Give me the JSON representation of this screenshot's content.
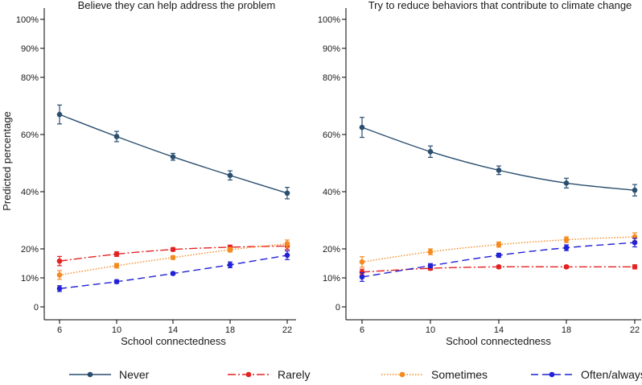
{
  "chart_data": {
    "type": "line",
    "ylabel": "Predicted percentage",
    "xlabel": "School connectedness",
    "x": [
      6,
      10,
      14,
      18,
      22
    ],
    "xlim": [
      6,
      22
    ],
    "yticks": [
      0,
      10,
      20,
      40,
      60,
      80,
      90,
      100
    ],
    "ytick_labels": [
      "0",
      "10%",
      "20%",
      "40%",
      "60%",
      "80%",
      "90%",
      "100%"
    ],
    "xtick_labels": [
      "6",
      "10",
      "14",
      "18",
      "22"
    ],
    "series_styles": [
      {
        "name": "Never",
        "color": "#2a4e6e",
        "dash": ""
      },
      {
        "name": "Rarely",
        "color": "#e42222",
        "dash": "10 3 2 3"
      },
      {
        "name": "Sometimes",
        "color": "#f58a1f",
        "dash": "1.5 2"
      },
      {
        "name": "Often/always",
        "color": "#2222d6",
        "dash": "9 5"
      }
    ],
    "panels": [
      {
        "title": "Believe they can help address the problem",
        "series": [
          {
            "name": "Never",
            "values": [
              67.0,
              59.3,
              52.2,
              45.7,
              39.5
            ],
            "err": [
              3.3,
              1.8,
              1.2,
              1.6,
              2.0
            ]
          },
          {
            "name": "Rarely",
            "values": [
              15.8,
              18.2,
              19.8,
              20.6,
              21.0
            ],
            "err": [
              1.6,
              0.8,
              0.6,
              0.7,
              1.2
            ]
          },
          {
            "name": "Sometimes",
            "values": [
              11.0,
              14.2,
              17.0,
              19.7,
              21.8
            ],
            "err": [
              1.5,
              0.8,
              0.6,
              0.8,
              1.3
            ]
          },
          {
            "name": "Often/always",
            "values": [
              6.3,
              8.7,
              11.5,
              14.5,
              17.8
            ],
            "err": [
              1.0,
              0.6,
              0.5,
              1.0,
              1.5
            ]
          }
        ]
      },
      {
        "title": "Try to reduce behaviors that contribute to climate change",
        "series": [
          {
            "name": "Never",
            "values": [
              62.5,
              54.0,
              47.5,
              43.0,
              40.5
            ],
            "err": [
              3.5,
              2.0,
              1.5,
              1.7,
              2.0
            ]
          },
          {
            "name": "Rarely",
            "values": [
              12.0,
              13.3,
              13.8,
              13.8,
              13.8
            ],
            "err": [
              1.0,
              0.6,
              0.5,
              0.5,
              0.7
            ]
          },
          {
            "name": "Sometimes",
            "values": [
              15.5,
              19.0,
              21.5,
              23.2,
              24.2
            ],
            "err": [
              1.8,
              1.0,
              0.9,
              1.0,
              1.4
            ]
          },
          {
            "name": "Often/always",
            "values": [
              10.3,
              14.2,
              17.8,
              20.4,
              22.2
            ],
            "err": [
              1.5,
              0.7,
              0.7,
              1.0,
              1.5
            ]
          }
        ]
      }
    ],
    "legend": {
      "position": "bottom",
      "entries": [
        "Never",
        "Rarely",
        "Sometimes",
        "Often/always"
      ]
    }
  }
}
